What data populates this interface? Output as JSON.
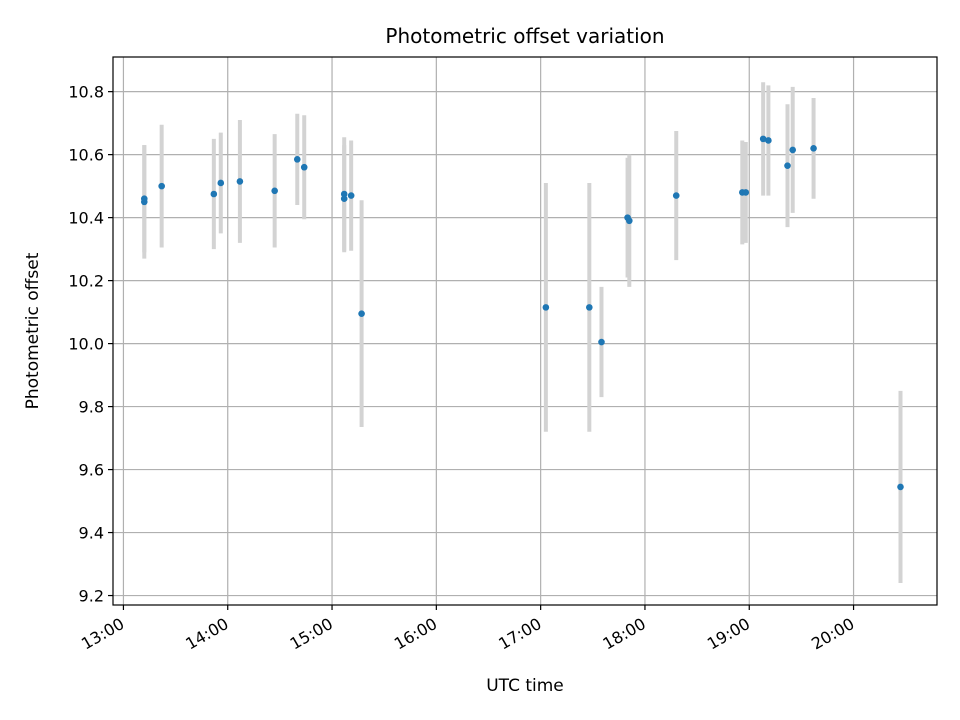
{
  "chart_data": {
    "type": "scatter",
    "title": "Photometric offset variation",
    "xlabel": "UTC time",
    "ylabel": "Photometric offset",
    "x_ticks": [
      "13:00",
      "14:00",
      "15:00",
      "16:00",
      "17:00",
      "18:00",
      "19:00",
      "20:00"
    ],
    "y_ticks": [
      "9.2",
      "9.4",
      "9.6",
      "9.8",
      "10.0",
      "10.2",
      "10.4",
      "10.6",
      "10.8"
    ],
    "xlim": [
      "12:54",
      "20:48"
    ],
    "ylim": [
      9.17,
      10.91
    ],
    "grid": true,
    "colors": {
      "points": "#1f77b4",
      "error_bars": "#d3d3d3",
      "grid": "#b0b0b0"
    },
    "points": [
      {
        "time": "13:12",
        "y": 10.45,
        "yerr": 0.18
      },
      {
        "time": "13:12",
        "y": 10.46,
        "yerr": 0.17
      },
      {
        "time": "13:22",
        "y": 10.5,
        "yerr": 0.195
      },
      {
        "time": "13:52",
        "y": 10.475,
        "yerr": 0.175
      },
      {
        "time": "13:56",
        "y": 10.51,
        "yerr": 0.16
      },
      {
        "time": "14:07",
        "y": 10.515,
        "yerr": 0.195
      },
      {
        "time": "14:27",
        "y": 10.485,
        "yerr": 0.18
      },
      {
        "time": "14:40",
        "y": 10.585,
        "yerr": 0.145
      },
      {
        "time": "14:44",
        "y": 10.56,
        "yerr": 0.165
      },
      {
        "time": "15:07",
        "y": 10.475,
        "yerr": 0.18
      },
      {
        "time": "15:07",
        "y": 10.46,
        "yerr": 0.17
      },
      {
        "time": "15:11",
        "y": 10.47,
        "yerr": 0.175
      },
      {
        "time": "15:17",
        "y": 10.095,
        "yerr": 0.36
      },
      {
        "time": "17:03",
        "y": 10.115,
        "yerr": 0.395
      },
      {
        "time": "17:28",
        "y": 10.115,
        "yerr": 0.395
      },
      {
        "time": "17:35",
        "y": 10.005,
        "yerr": 0.175
      },
      {
        "time": "17:50",
        "y": 10.4,
        "yerr": 0.19
      },
      {
        "time": "17:51",
        "y": 10.39,
        "yerr": 0.21
      },
      {
        "time": "18:18",
        "y": 10.47,
        "yerr": 0.205
      },
      {
        "time": "18:56",
        "y": 10.48,
        "yerr": 0.165
      },
      {
        "time": "18:58",
        "y": 10.48,
        "yerr": 0.16
      },
      {
        "time": "19:08",
        "y": 10.65,
        "yerr": 0.18
      },
      {
        "time": "19:11",
        "y": 10.645,
        "yerr": 0.175
      },
      {
        "time": "19:22",
        "y": 10.565,
        "yerr": 0.195
      },
      {
        "time": "19:25",
        "y": 10.615,
        "yerr": 0.2
      },
      {
        "time": "19:37",
        "y": 10.62,
        "yerr": 0.16
      },
      {
        "time": "20:27",
        "y": 9.545,
        "yerr": 0.305
      }
    ]
  }
}
